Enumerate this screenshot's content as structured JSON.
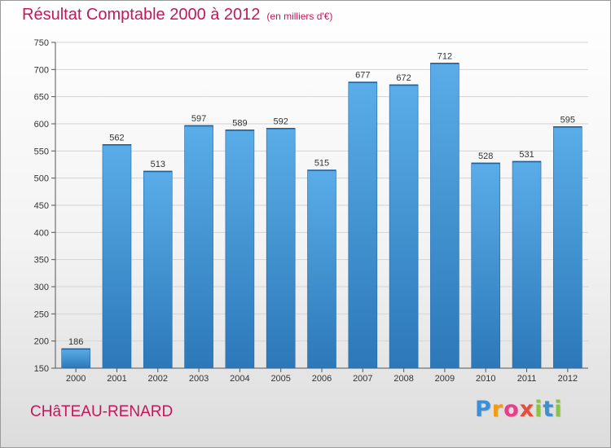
{
  "header": {
    "title": "Résultat Comptable 2000 à 2012",
    "unit": "(en milliers d'€)"
  },
  "footer": {
    "commune": "CHâTEAU-RENARD",
    "logo_letters": [
      {
        "char": "P",
        "color": "#3a8fd6"
      },
      {
        "char": "r",
        "color": "#f39c12"
      },
      {
        "char": "o",
        "color": "#e83e8c"
      },
      {
        "char": "x",
        "color": "#e74c3c"
      },
      {
        "char": "i",
        "color": "#8bc34a"
      },
      {
        "char": "t",
        "color": "#3a8fd6"
      },
      {
        "char": "i",
        "color": "#8bc34a"
      }
    ]
  },
  "colors": {
    "title": "#c2185b",
    "bar_top": "#5aade8",
    "bar_bottom": "#2c78b9",
    "bar_edge": "#2268a8"
  },
  "chart_data": {
    "type": "bar",
    "title": "Résultat Comptable 2000 à 2012",
    "ylabel": "en milliers d'€",
    "xlabel": "",
    "categories": [
      "2000",
      "2001",
      "2002",
      "2003",
      "2004",
      "2005",
      "2006",
      "2007",
      "2008",
      "2009",
      "2010",
      "2011",
      "2012"
    ],
    "values": [
      186,
      562,
      513,
      597,
      589,
      592,
      515,
      677,
      672,
      712,
      528,
      531,
      595
    ],
    "ylim": [
      150,
      750
    ],
    "yticks": [
      150,
      200,
      250,
      300,
      350,
      400,
      450,
      500,
      550,
      600,
      650,
      700,
      750
    ],
    "grid": true
  }
}
